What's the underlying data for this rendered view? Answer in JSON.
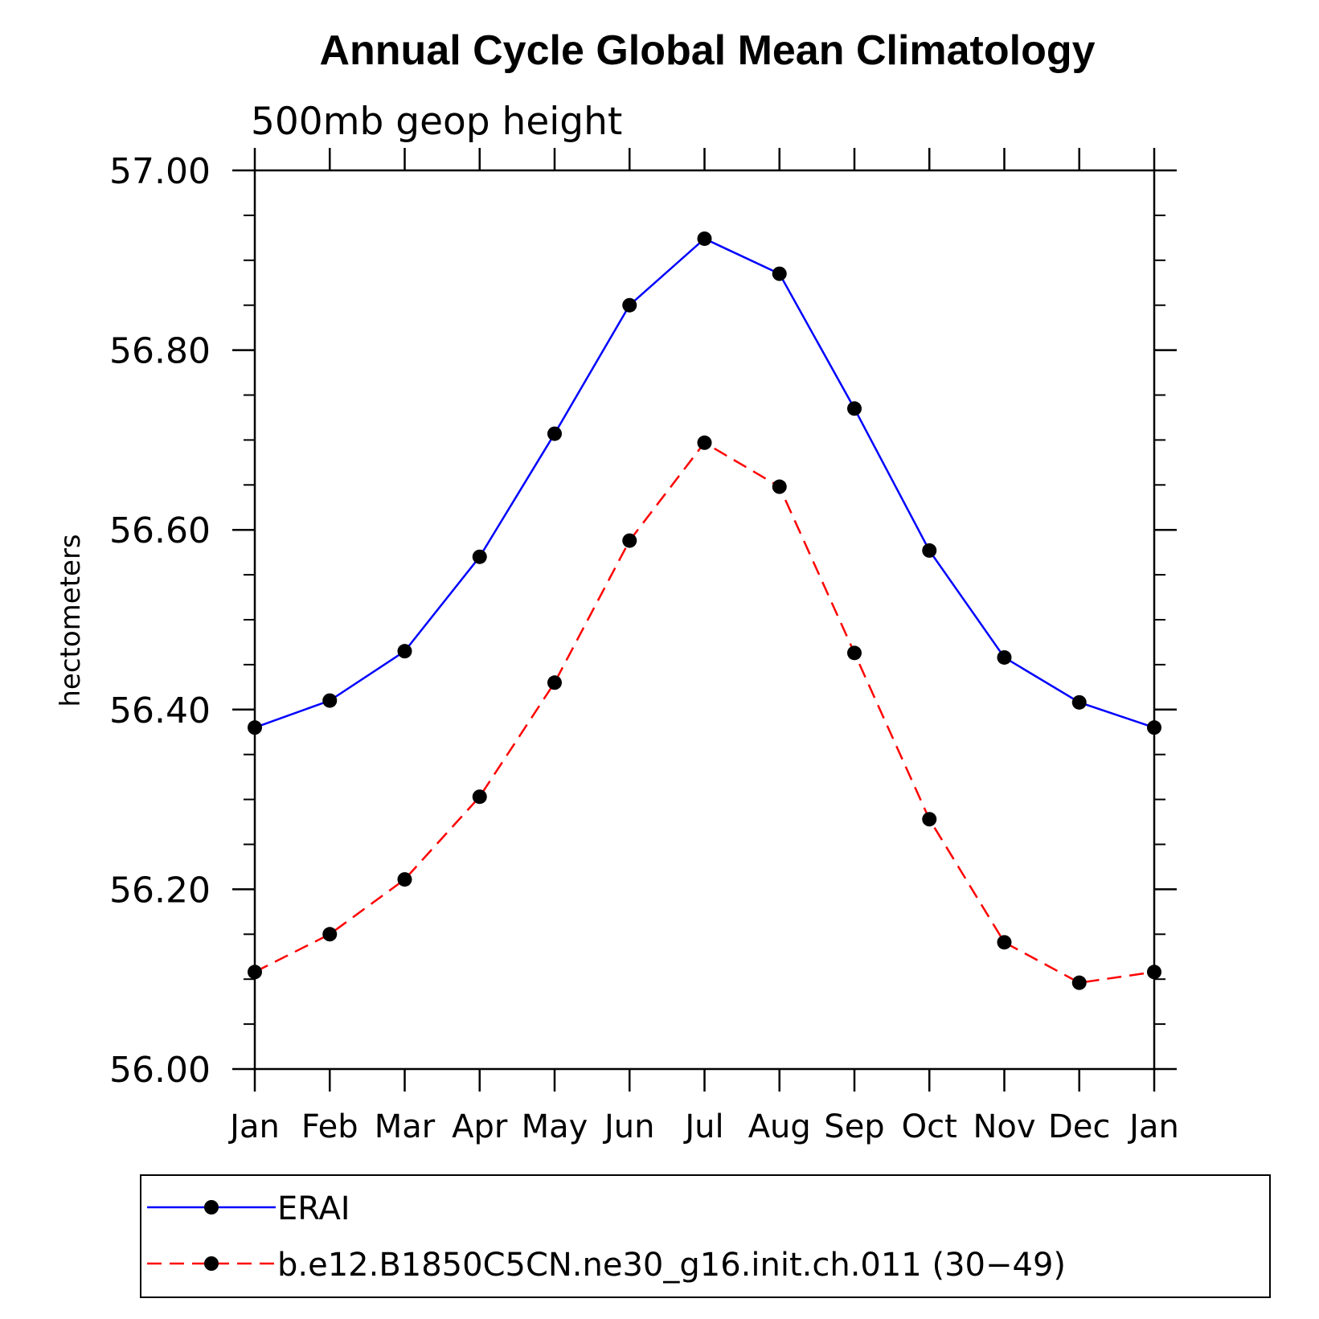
{
  "chart_data": {
    "type": "line",
    "title": "Annual Cycle Global Mean Climatology",
    "subtitle": "500mb geop height",
    "xlabel": "",
    "ylabel": "hectometers",
    "categories": [
      "Jan",
      "Feb",
      "Mar",
      "Apr",
      "May",
      "Jun",
      "Jul",
      "Aug",
      "Sep",
      "Oct",
      "Nov",
      "Dec",
      "Jan"
    ],
    "ylim": [
      56.0,
      57.0
    ],
    "yticks": [
      "56.00",
      "56.20",
      "56.40",
      "56.60",
      "56.80",
      "57.00"
    ],
    "grid": false,
    "legend_position": "bottom",
    "series": [
      {
        "name": "ERAI",
        "color": "#0000ff",
        "line_style": "solid",
        "marker": "filled-circle",
        "values": [
          56.38,
          56.41,
          56.465,
          56.57,
          56.707,
          56.85,
          56.924,
          56.885,
          56.735,
          56.577,
          56.458,
          56.408,
          56.38
        ]
      },
      {
        "name": "b.e12.B1850C5CN.ne30_g16.init.ch.011 (30−49)",
        "color": "#ff0000",
        "line_style": "dashed",
        "marker": "filled-circle",
        "values": [
          56.108,
          56.15,
          56.211,
          56.303,
          56.43,
          56.588,
          56.697,
          56.648,
          56.463,
          56.278,
          56.141,
          56.096,
          56.108
        ]
      }
    ]
  }
}
